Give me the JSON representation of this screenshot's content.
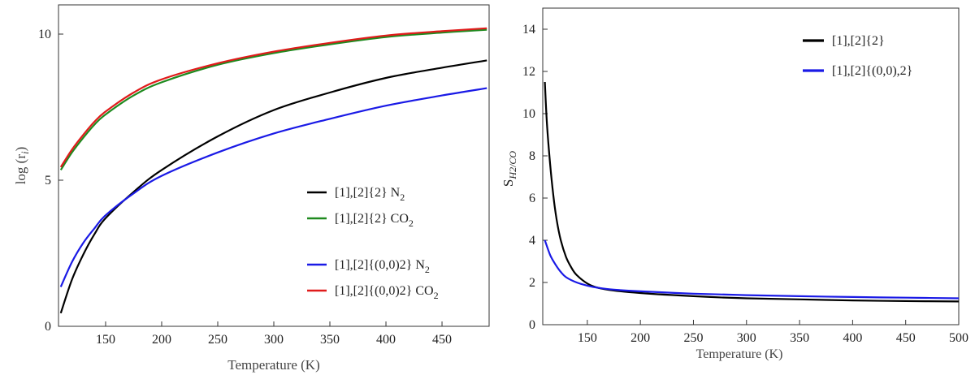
{
  "chart_data": [
    {
      "type": "line",
      "title": "",
      "xlabel": "Temperature (K)",
      "ylabel": "log (r",
      "ylabel_sub": "i",
      "ylabel_close": ")",
      "xlim": [
        108,
        492
      ],
      "ylim": [
        0,
        11
      ],
      "xticks": [
        150,
        200,
        250,
        300,
        350,
        400,
        450
      ],
      "yticks": [
        0,
        5,
        10
      ],
      "xtick_labels": [
        "150",
        "200",
        "250",
        "300",
        "350",
        "400",
        "450"
      ],
      "ytick_labels": [
        "0",
        "5",
        "10"
      ],
      "grid": false,
      "legend_position": "center-right",
      "series": [
        {
          "name": "[1],[2]{2} N",
          "sub": "2",
          "color": "#000000",
          "x": [
            110,
            120,
            130,
            140,
            150,
            175,
            200,
            250,
            300,
            350,
            400,
            450,
            490
          ],
          "y": [
            0.45,
            1.6,
            2.45,
            3.15,
            3.7,
            4.6,
            5.35,
            6.5,
            7.4,
            8.0,
            8.5,
            8.85,
            9.1
          ]
        },
        {
          "name": "[1],[2]{2} CO",
          "sub": "2",
          "color": "#1f8a1f",
          "x": [
            110,
            120,
            130,
            140,
            150,
            175,
            200,
            250,
            300,
            350,
            400,
            450,
            490
          ],
          "y": [
            5.35,
            5.95,
            6.45,
            6.9,
            7.25,
            7.9,
            8.35,
            8.95,
            9.35,
            9.65,
            9.9,
            10.05,
            10.15
          ]
        },
        {
          "name": "[1],[2]{(0,0)2} N",
          "sub": "2",
          "color": "#1a1ae6",
          "x": [
            110,
            120,
            130,
            140,
            150,
            175,
            200,
            250,
            300,
            350,
            400,
            450,
            490
          ],
          "y": [
            1.35,
            2.2,
            2.85,
            3.35,
            3.8,
            4.55,
            5.15,
            5.95,
            6.6,
            7.1,
            7.55,
            7.9,
            8.15
          ]
        },
        {
          "name": "[1],[2]{(0,0)2} CO",
          "sub": "2",
          "color": "#e01b1b",
          "x": [
            110,
            120,
            130,
            140,
            150,
            175,
            200,
            250,
            300,
            350,
            400,
            450,
            490
          ],
          "y": [
            5.45,
            6.05,
            6.55,
            7.0,
            7.35,
            8.0,
            8.45,
            9.0,
            9.4,
            9.7,
            9.95,
            10.1,
            10.2
          ]
        }
      ]
    },
    {
      "type": "line",
      "title": "",
      "xlabel": "Temperature (K)",
      "ylabel": "S",
      "ylabel_sub": "H2/CO",
      "xlim": [
        108,
        500
      ],
      "ylim": [
        0,
        15
      ],
      "xticks": [
        150,
        200,
        250,
        300,
        350,
        400,
        450,
        500
      ],
      "yticks": [
        0,
        2,
        4,
        6,
        8,
        10,
        12,
        14
      ],
      "xtick_labels": [
        "150",
        "200",
        "250",
        "300",
        "350",
        "400",
        "450",
        "500"
      ],
      "ytick_labels": [
        "0",
        "2",
        "4",
        "6",
        "8",
        "10",
        "12",
        "14"
      ],
      "grid": false,
      "legend_position": "top-right",
      "series": [
        {
          "name": "[1],[2]{2}",
          "color": "#000000",
          "x": [
            110,
            112,
            115,
            118,
            121,
            125,
            130,
            135,
            140,
            150,
            160,
            175,
            200,
            250,
            300,
            350,
            400,
            450,
            500
          ],
          "y": [
            11.5,
            9.5,
            7.6,
            6.1,
            5.0,
            4.0,
            3.2,
            2.7,
            2.35,
            1.95,
            1.75,
            1.62,
            1.5,
            1.35,
            1.25,
            1.2,
            1.15,
            1.12,
            1.1
          ]
        },
        {
          "name": "[1],[2]{(0,0),2}",
          "color": "#1a1ae6",
          "x": [
            110,
            115,
            120,
            125,
            130,
            140,
            150,
            160,
            175,
            200,
            250,
            300,
            350,
            400,
            450,
            500
          ],
          "y": [
            4.0,
            3.3,
            2.85,
            2.5,
            2.25,
            2.0,
            1.85,
            1.75,
            1.66,
            1.58,
            1.47,
            1.4,
            1.35,
            1.31,
            1.28,
            1.25
          ]
        }
      ]
    }
  ]
}
